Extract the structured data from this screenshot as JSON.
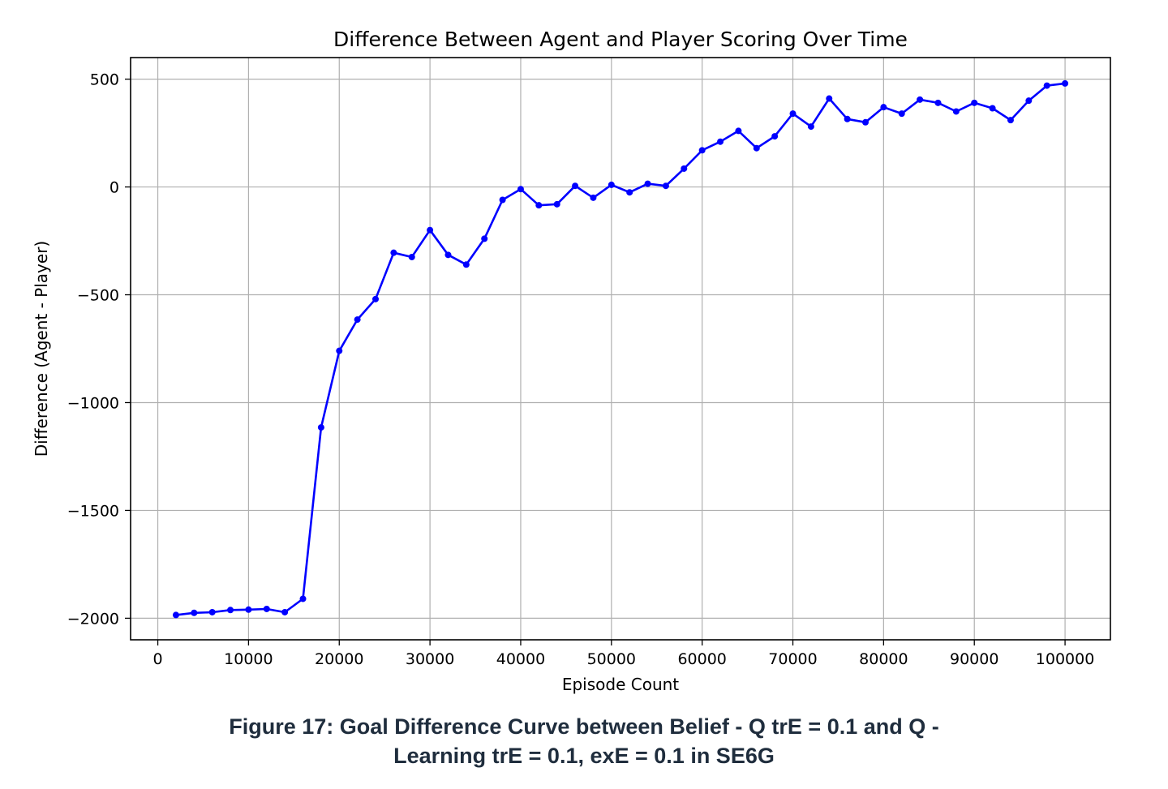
{
  "caption": {
    "line1": "Figure 17: Goal Difference Curve between Belief - Q trE = 0.1 and Q -",
    "line2": "Learning trE = 0.1, exE = 0.1 in SE6G"
  },
  "chart_data": {
    "type": "line",
    "title": "Difference Between Agent and Player Scoring Over Time",
    "xlabel": "Episode Count",
    "ylabel": "Difference (Agent - Player)",
    "xlim": [
      -3000,
      105000
    ],
    "ylim": [
      -2100,
      600
    ],
    "xticks": [
      0,
      10000,
      20000,
      30000,
      40000,
      50000,
      60000,
      70000,
      80000,
      90000,
      100000
    ],
    "xtick_labels": [
      "0",
      "10000",
      "20000",
      "30000",
      "40000",
      "50000",
      "60000",
      "70000",
      "80000",
      "90000",
      "100000"
    ],
    "yticks": [
      500,
      0,
      -500,
      -1000,
      -1500,
      -2000
    ],
    "ytick_labels": [
      "500",
      "0",
      "−500",
      "−1000",
      "−1500",
      "−2000"
    ],
    "grid": true,
    "color": "#0000ff",
    "marker": "dot",
    "series": [
      {
        "x": [
          2000,
          4000,
          6000,
          8000,
          10000,
          12000,
          14000,
          16000,
          18000,
          20000,
          22000,
          24000,
          26000,
          28000,
          30000,
          32000,
          34000,
          36000,
          38000,
          40000,
          42000,
          44000,
          46000,
          48000,
          50000,
          52000,
          54000,
          56000,
          58000,
          60000,
          62000,
          64000,
          66000,
          68000,
          70000,
          72000,
          74000,
          76000,
          78000,
          80000,
          82000,
          84000,
          86000,
          88000,
          90000,
          92000,
          94000,
          96000,
          98000,
          100000
        ],
        "values": [
          -1985,
          -1975,
          -1972,
          -1962,
          -1960,
          -1957,
          -1972,
          -1910,
          -1115,
          -760,
          -615,
          -520,
          -305,
          -325,
          -200,
          -315,
          -360,
          -240,
          -60,
          -10,
          -85,
          -80,
          5,
          -50,
          10,
          -25,
          15,
          5,
          85,
          170,
          210,
          260,
          180,
          235,
          340,
          280,
          410,
          315,
          300,
          370,
          340,
          405,
          390,
          350,
          390,
          365,
          310,
          400,
          470,
          480
        ]
      }
    ]
  }
}
